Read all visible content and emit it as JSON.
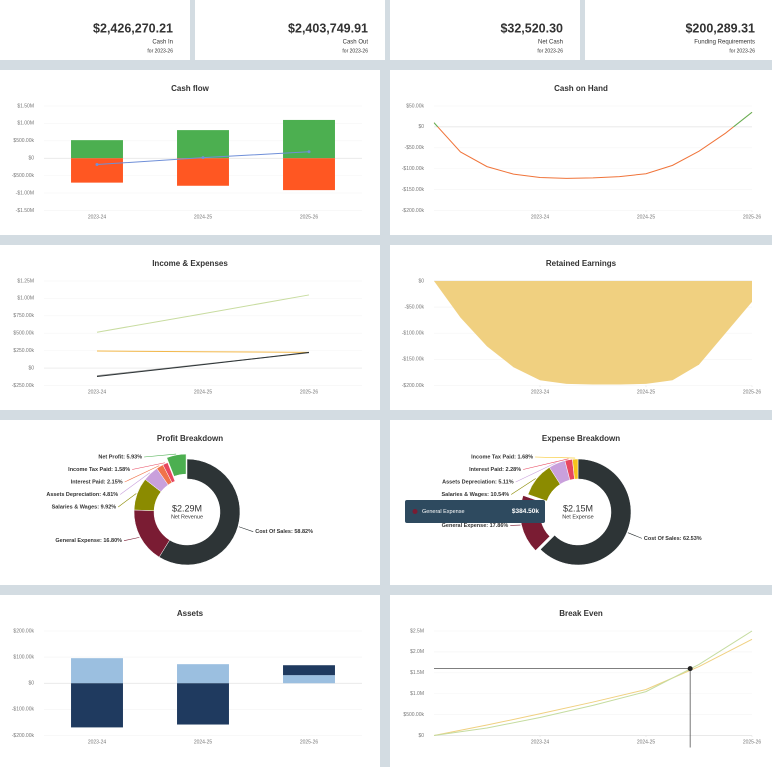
{
  "kpis": [
    {
      "value": "$2,426,270.21",
      "label": "Cash In",
      "period": "for 2023-26"
    },
    {
      "value": "$2,403,749.91",
      "label": "Cash Out",
      "period": "for 2023-26"
    },
    {
      "value": "$32,520.30",
      "label": "Net Cash",
      "period": "for 2023-26"
    },
    {
      "value": "$200,289.31",
      "label": "Funding Requirements",
      "period": "for 2023-26"
    }
  ],
  "chart_data": [
    {
      "type": "bar",
      "stacked": true,
      "title": "Cash flow",
      "grid": true,
      "categories": [
        "2023-24",
        "2024-25",
        "2025-26"
      ],
      "series": [
        {
          "color": "#4caf50",
          "values": [
            520000,
            808000,
            1100000
          ]
        },
        {
          "color": "#ff5722",
          "values": [
            -700000,
            -790000,
            -915000
          ]
        },
        {
          "type": "line",
          "color": "#6f8fd8",
          "values": [
            -180000,
            18000,
            185000
          ]
        }
      ],
      "ylim": [
        -1500000,
        1500000
      ],
      "yticks": [
        {
          "value": -1500000,
          "label": "-$1.50M"
        },
        {
          "value": -1000000,
          "label": "-$1.00M"
        },
        {
          "value": -500000,
          "label": "-$500.00k"
        },
        {
          "value": 0,
          "label": "$0"
        },
        {
          "value": 500000,
          "label": "$500.00k"
        },
        {
          "value": 1000000,
          "label": "$1.00M"
        },
        {
          "value": 1500000,
          "label": "$1.50M"
        }
      ]
    },
    {
      "type": "line",
      "title": "Cash on Hand",
      "grid": true,
      "color": "#f0743a",
      "positive_color": "#5cb85c",
      "x": [
        0,
        3,
        6,
        9,
        12,
        15,
        18,
        21,
        24,
        27,
        30,
        33,
        36
      ],
      "values": [
        10000,
        -60000,
        -95000,
        -113000,
        -121000,
        -123000,
        -122000,
        -119000,
        -112000,
        -92000,
        -58000,
        -15000,
        35000
      ],
      "xlim": [
        0,
        36
      ],
      "xticks": [
        {
          "value": 12,
          "label": "2023-24"
        },
        {
          "value": 24,
          "label": "2024-25"
        },
        {
          "value": 36,
          "label": "2025-26"
        }
      ],
      "ylim": [
        -200000,
        50000
      ],
      "yticks": [
        {
          "value": -200000,
          "label": "-$200.00k"
        },
        {
          "value": -150000,
          "label": "-$150.00k"
        },
        {
          "value": -100000,
          "label": "-$100.00k"
        },
        {
          "value": -50000,
          "label": "-$50.00k"
        },
        {
          "value": 0,
          "label": "$0"
        },
        {
          "value": 50000,
          "label": "$50.00k"
        }
      ]
    },
    {
      "type": "line",
      "title": "Income & Expenses",
      "grid": true,
      "categories": [
        "2023-24",
        "2024-25",
        "2025-26"
      ],
      "series": [
        {
          "color": "#c8dca0",
          "values": [
            515000,
            780000,
            1050000
          ]
        },
        {
          "color": "#f2b84b",
          "values": [
            245000,
            235000,
            225000
          ]
        },
        {
          "color": "#9a9a9a",
          "values": [
            -110000,
            55000,
            220000
          ]
        },
        {
          "color": "#2d3436",
          "values": [
            -120000,
            50000,
            225000
          ]
        }
      ],
      "ylim": [
        -250000,
        1250000
      ],
      "yticks": [
        {
          "value": -250000,
          "label": "-$250.00k"
        },
        {
          "value": 0,
          "label": "$0"
        },
        {
          "value": 250000,
          "label": "$250.00k"
        },
        {
          "value": 500000,
          "label": "$500.00k"
        },
        {
          "value": 750000,
          "label": "$750.00k"
        },
        {
          "value": 1000000,
          "label": "$1.00M"
        },
        {
          "value": 1250000,
          "label": "$1.25M"
        }
      ]
    },
    {
      "type": "area",
      "title": "Retained Earnings",
      "grid": true,
      "color": "#f0d080",
      "x": [
        0,
        3,
        6,
        9,
        12,
        15,
        18,
        21,
        24,
        27,
        30,
        33,
        36
      ],
      "values": [
        0,
        -70000,
        -125000,
        -165000,
        -190000,
        -197000,
        -198000,
        -198000,
        -197000,
        -190000,
        -160000,
        -100000,
        -40000
      ],
      "xlim": [
        0,
        36
      ],
      "xticks": [
        {
          "value": 12,
          "label": "2023-24"
        },
        {
          "value": 24,
          "label": "2024-25"
        },
        {
          "value": 36,
          "label": "2025-26"
        }
      ],
      "ylim": [
        -200000,
        0
      ],
      "yticks": [
        {
          "value": -200000,
          "label": "-$200.00k"
        },
        {
          "value": -150000,
          "label": "-$150.00k"
        },
        {
          "value": -100000,
          "label": "-$100.00k"
        },
        {
          "value": -50000,
          "label": "-$50.00k"
        },
        {
          "value": 0,
          "label": "$0"
        }
      ]
    },
    {
      "type": "pie",
      "title": "Profit Breakdown",
      "center_value": "$2.29M",
      "center_label": "Net Revenue",
      "exploded": 6,
      "values": [
        58.82,
        16.8,
        9.92,
        4.81,
        2.15,
        1.58,
        5.93
      ],
      "value_labels": [
        "Cost Of Sales: 58.82%",
        "General Expense: 16.80%",
        "Salaries & Wages: 9.92%",
        "Assets Depreciation: 4.81%",
        "Interest Paid: 2.15%",
        "Income Tax Paid: 1.58%",
        "Net Profit: 5.93%"
      ],
      "colors": [
        "#2d3436",
        "#7a1c33",
        "#8b8b00",
        "#c9a0dc",
        "#f0734a",
        "#e8475f",
        "#4caf50"
      ]
    },
    {
      "type": "pie",
      "title": "Expense Breakdown",
      "center_value": "$2.15M",
      "center_label": "Net Expense",
      "exploded": 1,
      "values": [
        62.53,
        17.86,
        10.54,
        5.11,
        2.28,
        1.68
      ],
      "value_labels": [
        "Cost Of Sales: 62.53%",
        "General Expense: 17.86%",
        "Salaries & Wages: 10.54%",
        "Assets Depreciation: 5.11%",
        "Interest Paid: 2.28%",
        "Income Tax Paid: 1.68%"
      ],
      "colors": [
        "#2d3436",
        "#7a1c33",
        "#8b8b00",
        "#c9a0dc",
        "#e8475f",
        "#f7c31b"
      ],
      "tooltip": {
        "label": "General Expense",
        "value_label": "$384.50k"
      }
    },
    {
      "type": "bar",
      "stacked": true,
      "title": "Assets",
      "grid": true,
      "categories": [
        "2023-24",
        "2024-25",
        "2025-26"
      ],
      "series": [
        {
          "color": "#9bbfe0",
          "values": [
            96000,
            73000,
            31000
          ]
        },
        {
          "color": "#1f3a5f",
          "values": [
            -169000,
            -158000,
            38000
          ]
        }
      ],
      "ylim": [
        -200000,
        200000
      ],
      "yticks": [
        {
          "value": -200000,
          "label": "-$200.00k"
        },
        {
          "value": -100000,
          "label": "-$100.00k"
        },
        {
          "value": 0,
          "label": "$0"
        },
        {
          "value": 100000,
          "label": "$100.00k"
        },
        {
          "value": 200000,
          "label": "$200.00k"
        }
      ]
    },
    {
      "type": "line",
      "title": "Break Even",
      "grid": true,
      "x": [
        0,
        6,
        12,
        18,
        24,
        30,
        36
      ],
      "series": [
        {
          "color": "#f0d080",
          "values": [
            0,
            250000,
            520000,
            800000,
            1100000,
            1650000,
            2300000
          ]
        },
        {
          "color": "#c5dca0",
          "values": [
            0,
            180000,
            430000,
            720000,
            1050000,
            1700000,
            2500000
          ]
        }
      ],
      "break_even": {
        "x": 29,
        "y": 1600000
      },
      "xlim": [
        0,
        36
      ],
      "xticks": [
        {
          "value": 12,
          "label": "2023-24"
        },
        {
          "value": 24,
          "label": "2024-25"
        },
        {
          "value": 36,
          "label": "2025-26"
        }
      ],
      "ylim": [
        0,
        2500000
      ],
      "yticks": [
        {
          "value": 0,
          "label": "$0"
        },
        {
          "value": 500000,
          "label": "$500.00k"
        },
        {
          "value": 1000000,
          "label": "$1.0M"
        },
        {
          "value": 1500000,
          "label": "$1.5M"
        },
        {
          "value": 2000000,
          "label": "$2.0M"
        },
        {
          "value": 2500000,
          "label": "$2.5M"
        }
      ]
    }
  ]
}
